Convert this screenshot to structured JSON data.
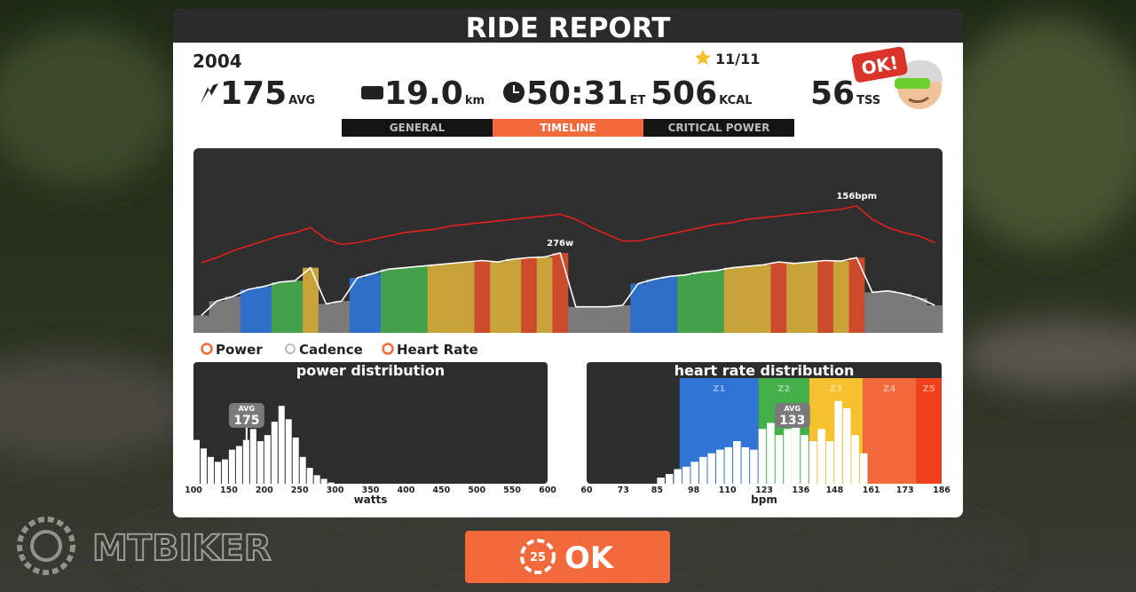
{
  "header": {
    "title": "RIDE REPORT",
    "rider": "2004",
    "stars": "11/11",
    "badge": "OK!"
  },
  "stats": [
    {
      "value": "175",
      "unit": "AVG"
    },
    {
      "value": "19.0",
      "unit": "km"
    },
    {
      "value": "50:31",
      "unit": "ET"
    },
    {
      "value": "506",
      "unit": "KCAL"
    },
    {
      "value": "56",
      "unit": "TSS"
    }
  ],
  "tabs": [
    "GENERAL",
    "TIMELINE",
    "CRITICAL POWER"
  ],
  "active_tab": 1,
  "chart_data": [
    {
      "type": "line",
      "ylim": [
        0,
        635
      ],
      "y2lim": [
        80,
        190
      ],
      "peak_labels": [
        "276w",
        "156bpm"
      ],
      "series": [
        {
          "name": "Power",
          "color": "#ffffff",
          "values": [
            60,
            110,
            125,
            150,
            160,
            175,
            180,
            225,
            100,
            110,
            190,
            205,
            220,
            225,
            230,
            235,
            240,
            245,
            250,
            245,
            255,
            260,
            262,
            276,
            90,
            90,
            90,
            95,
            170,
            185,
            195,
            200,
            210,
            215,
            225,
            230,
            235,
            245,
            240,
            245,
            250,
            248,
            260,
            140,
            145,
            135,
            120,
            95
          ],
          "colors": [
            "#7a7a7a",
            "#7a7a7a",
            "#7a7a7a",
            "#2f6fc9",
            "#2f6fc9",
            "#45a04a",
            "#45a04a",
            "#c7a33a",
            "#7a7a7a",
            "#7a7a7a",
            "#2f6fc9",
            "#2f6fc9",
            "#45a04a",
            "#45a04a",
            "#45a04a",
            "#c7a33a",
            "#c7a33a",
            "#c7a33a",
            "#cc4b2c",
            "#c7a33a",
            "#c7a33a",
            "#cc4b2c",
            "#c7a33a",
            "#cc4b2c",
            "#7a7a7a",
            "#7a7a7a",
            "#7a7a7a",
            "#7a7a7a",
            "#2f6fc9",
            "#2f6fc9",
            "#2f6fc9",
            "#45a04a",
            "#45a04a",
            "#45a04a",
            "#c7a33a",
            "#c7a33a",
            "#c7a33a",
            "#cc4b2c",
            "#c7a33a",
            "#c7a33a",
            "#cc4b2c",
            "#c7a33a",
            "#cc4b2c",
            "#7a7a7a",
            "#7a7a7a",
            "#7a7a7a",
            "#7a7a7a",
            "#7a7a7a"
          ]
        },
        {
          "name": "Heart Rate",
          "color": "#e0201b",
          "axis": "y2",
          "values": [
            122,
            125,
            129,
            132,
            135,
            138,
            140,
            143,
            136,
            133,
            134,
            136,
            138,
            140,
            141,
            142,
            144,
            145,
            146,
            147,
            148,
            149,
            150,
            151,
            148,
            143,
            139,
            135,
            135,
            137,
            139,
            141,
            143,
            145,
            146,
            148,
            149,
            150,
            151,
            152,
            153,
            154,
            156,
            148,
            143,
            140,
            138,
            134
          ]
        }
      ],
      "hidden_series": [
        {
          "name": "Cadence"
        }
      ]
    },
    {
      "type": "histogram",
      "title": "power distribution",
      "xlabel": "watts",
      "xlim": [
        100,
        600
      ],
      "xticks": [
        100,
        150,
        200,
        250,
        300,
        350,
        400,
        450,
        500,
        550,
        600
      ],
      "ylim": [
        0,
        100
      ],
      "bins": [
        100,
        110,
        120,
        130,
        140,
        150,
        160,
        170,
        180,
        190,
        200,
        210,
        220,
        230,
        240,
        250,
        260,
        270,
        280,
        290,
        300
      ],
      "values": [
        36,
        29,
        22,
        18,
        20,
        28,
        31,
        36,
        45,
        35,
        40,
        51,
        64,
        53,
        38,
        22,
        13,
        7,
        4,
        1
      ],
      "color": "#ffffff",
      "avg": 175,
      "avg_label": "AVG"
    },
    {
      "type": "histogram",
      "title": "heart rate distribution",
      "xlabel": "bpm",
      "xlim": [
        60,
        186
      ],
      "xticks": [
        60,
        73,
        85,
        98,
        110,
        123,
        136,
        148,
        161,
        173,
        186
      ],
      "ylim": [
        0,
        100
      ],
      "bins": [
        85,
        88,
        91,
        94,
        97,
        100,
        103,
        106,
        109,
        112,
        115,
        118,
        121,
        124,
        127,
        130,
        133,
        136,
        139,
        142,
        145,
        148,
        151,
        154,
        157,
        160
      ],
      "values": [
        5,
        8,
        12,
        14,
        18,
        22,
        25,
        28,
        30,
        35,
        30,
        28,
        45,
        50,
        40,
        45,
        50,
        40,
        35,
        45,
        35,
        68,
        62,
        40,
        25
      ],
      "color": "#ffffff",
      "avg": 133,
      "avg_label": "AVG",
      "zones": [
        {
          "name": "Z1",
          "from": 93,
          "to": 121,
          "color": "#2f74d6"
        },
        {
          "name": "Z2",
          "from": 121,
          "to": 139,
          "color": "#43b04a"
        },
        {
          "name": "Z3",
          "from": 139,
          "to": 158,
          "color": "#f5c12e"
        },
        {
          "name": "Z4",
          "from": 158,
          "to": 177,
          "color": "#f26a3c"
        },
        {
          "name": "Z5",
          "from": 177,
          "to": 186,
          "color": "#f0401c"
        }
      ]
    }
  ],
  "button": {
    "countdown": "25",
    "label": "OK"
  },
  "watermark": "MTBIKER"
}
